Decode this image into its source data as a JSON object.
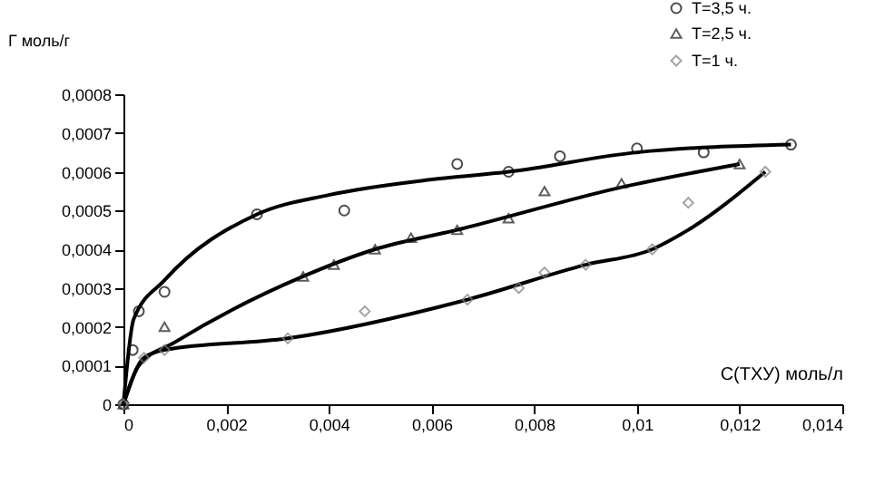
{
  "chart_data": {
    "type": "scatter",
    "xlabel": "C(ТХУ) моль/л",
    "ylabel": "Г моль/г",
    "xlim": [
      0,
      0.014
    ],
    "ylim": [
      0,
      0.0008
    ],
    "xticks": [
      0,
      {
        "value": 0.002,
        "label": "0,002"
      },
      {
        "value": 0.004,
        "label": "0,004"
      },
      {
        "value": 0.006,
        "label": "0,006"
      },
      {
        "value": 0.008,
        "label": "0,008"
      },
      {
        "value": 0.01,
        "label": "0,01"
      },
      {
        "value": 0.012,
        "label": "0,012"
      },
      {
        "value": 0.014,
        "label": "0,014"
      }
    ],
    "yticks": [
      0,
      {
        "value": 0.0001,
        "label": "0,0001"
      },
      {
        "value": 0.0002,
        "label": "0,0002"
      },
      {
        "value": 0.0003,
        "label": "0,0003"
      },
      {
        "value": 0.0004,
        "label": "0,0004"
      },
      {
        "value": 0.0005,
        "label": "0,0005"
      },
      {
        "value": 0.0006,
        "label": "0,0006"
      },
      {
        "value": 0.0007,
        "label": "0,0007"
      },
      {
        "value": 0.0008,
        "label": "0,0008"
      }
    ],
    "grid": false,
    "legend": "top right",
    "series": [
      {
        "name": "T=3,5 ч.",
        "color": "#000000",
        "marker": "circle",
        "x": [
          0,
          0.00018,
          0.0003,
          0.0008,
          0.0026,
          0.0043,
          0.0065,
          0.0075,
          0.0085,
          0.01,
          0.0113,
          0.013
        ],
        "values": [
          0,
          0.00014,
          0.00024,
          0.00029,
          0.00049,
          0.0005,
          0.00062,
          0.0006,
          0.00064,
          0.00066,
          0.00065,
          0.00067
        ]
      },
      {
        "name": "T=2,5 ч.",
        "color": "#1a1a1a",
        "marker": "triangle",
        "x": [
          0,
          0.0008,
          0.0035,
          0.0041,
          0.0049,
          0.0056,
          0.0065,
          0.0075,
          0.0082,
          0.0097,
          0.012
        ],
        "values": [
          0,
          0.0002,
          0.00033,
          0.00036,
          0.0004,
          0.00043,
          0.00045,
          0.00048,
          0.00055,
          0.00057,
          0.00062
        ]
      },
      {
        "name": "T=1 ч.",
        "color": "#808080",
        "marker": "diamond",
        "x": [
          0,
          0.0004,
          0.0008,
          0.0032,
          0.0047,
          0.0067,
          0.0077,
          0.0082,
          0.009,
          0.0103,
          0.011,
          0.0125
        ],
        "values": [
          0,
          0.00012,
          0.00014,
          0.00017,
          0.00024,
          0.00027,
          0.0003,
          0.00034,
          0.00036,
          0.0004,
          0.00052,
          0.0006
        ]
      },
      {
        "type": "line",
        "color": "#000000",
        "x": [
          0,
          0.0002,
          0.0008,
          0.0026,
          0.004,
          0.006,
          0.0075,
          0.01,
          0.013
        ],
        "values": [
          0,
          0.00022,
          0.00032,
          0.00049,
          0.00054,
          0.00058,
          0.0006,
          0.00065,
          0.00067
        ]
      },
      {
        "type": "line",
        "color": "#000000",
        "x": [
          0,
          0.0003,
          0.001,
          0.0035,
          0.0049,
          0.0065,
          0.0097,
          0.012
        ],
        "values": [
          0,
          0.0001,
          0.00016,
          0.00033,
          0.0004,
          0.00045,
          0.00056,
          0.00062
        ]
      },
      {
        "type": "line",
        "color": "#000000",
        "x": [
          0,
          0.0004,
          0.0008,
          0.0032,
          0.0067,
          0.009,
          0.0103,
          0.011,
          0.0125
        ],
        "values": [
          0,
          0.00012,
          0.00014,
          0.00017,
          0.00027,
          0.00036,
          0.0004,
          0.00045,
          0.0006
        ]
      }
    ]
  }
}
